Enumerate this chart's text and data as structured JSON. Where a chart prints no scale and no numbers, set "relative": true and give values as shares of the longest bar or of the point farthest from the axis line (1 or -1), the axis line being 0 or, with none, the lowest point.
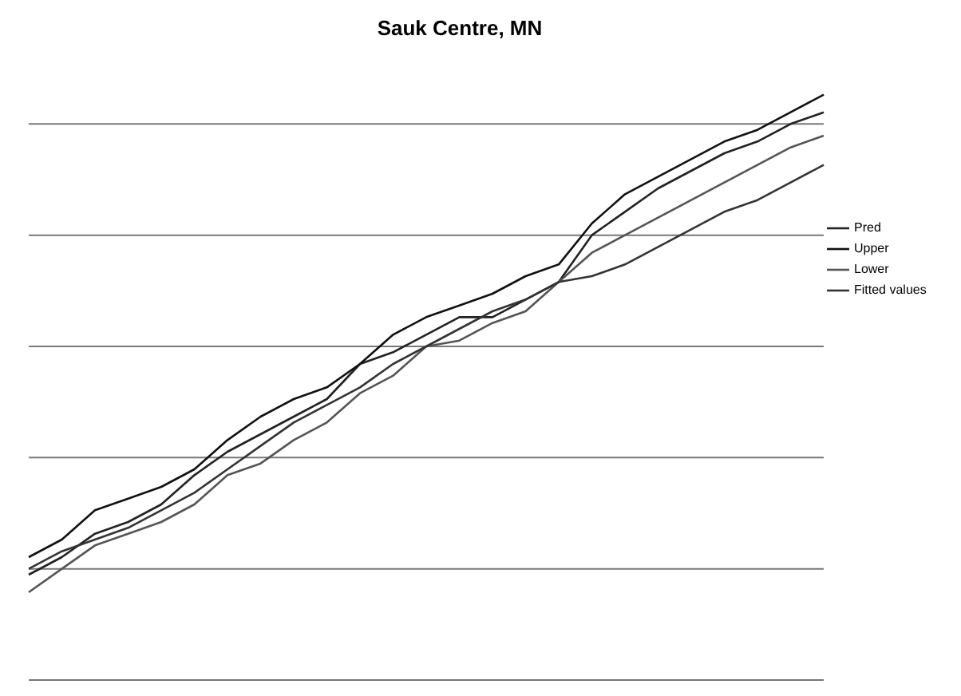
{
  "chart_data": {
    "type": "line",
    "title": "Sauk Centre, MN",
    "relative": true,
    "grid": "y",
    "legend": "right",
    "marker": "none",
    "line_style": "solid",
    "categories": [
      null,
      null,
      null,
      null,
      null,
      null,
      null,
      null,
      null,
      null,
      null,
      null,
      null,
      null,
      null,
      null,
      null,
      null,
      null,
      null,
      null,
      null,
      null,
      null,
      null
    ],
    "series": [
      {
        "name": "Pred",
        "color": "#222222",
        "values": [
          0.18,
          0.21,
          0.25,
          0.27,
          0.3,
          0.35,
          0.39,
          0.42,
          0.45,
          0.48,
          0.54,
          0.56,
          0.59,
          0.62,
          0.62,
          0.65,
          0.68,
          0.76,
          0.8,
          0.84,
          0.87,
          0.9,
          0.92,
          0.95,
          0.97
        ]
      },
      {
        "name": "Upper",
        "color": "#111111",
        "values": [
          0.21,
          0.24,
          0.29,
          0.31,
          0.33,
          0.36,
          0.41,
          0.45,
          0.48,
          0.5,
          0.54,
          0.59,
          0.62,
          0.64,
          0.66,
          0.69,
          0.71,
          0.78,
          0.83,
          0.86,
          0.89,
          0.92,
          0.94,
          0.97,
          1
        ]
      },
      {
        "name": "Lower",
        "color": "#555555",
        "values": [
          0.15,
          0.19,
          0.23,
          0.25,
          0.27,
          0.3,
          0.35,
          0.37,
          0.41,
          0.44,
          0.49,
          0.52,
          0.57,
          0.58,
          0.61,
          0.63,
          0.68,
          0.73,
          0.76,
          0.79,
          0.82,
          0.85,
          0.88,
          0.91,
          0.93
        ]
      },
      {
        "name": "Fitted values",
        "color": "#333333",
        "values": [
          0.19,
          0.22,
          0.24,
          0.26,
          0.29,
          0.32,
          0.36,
          0.4,
          0.44,
          0.47,
          0.5,
          0.54,
          0.57,
          0.6,
          0.63,
          0.65,
          0.68,
          0.69,
          0.71,
          0.74,
          0.77,
          0.8,
          0.82,
          0.85,
          0.88
        ]
      }
    ]
  }
}
